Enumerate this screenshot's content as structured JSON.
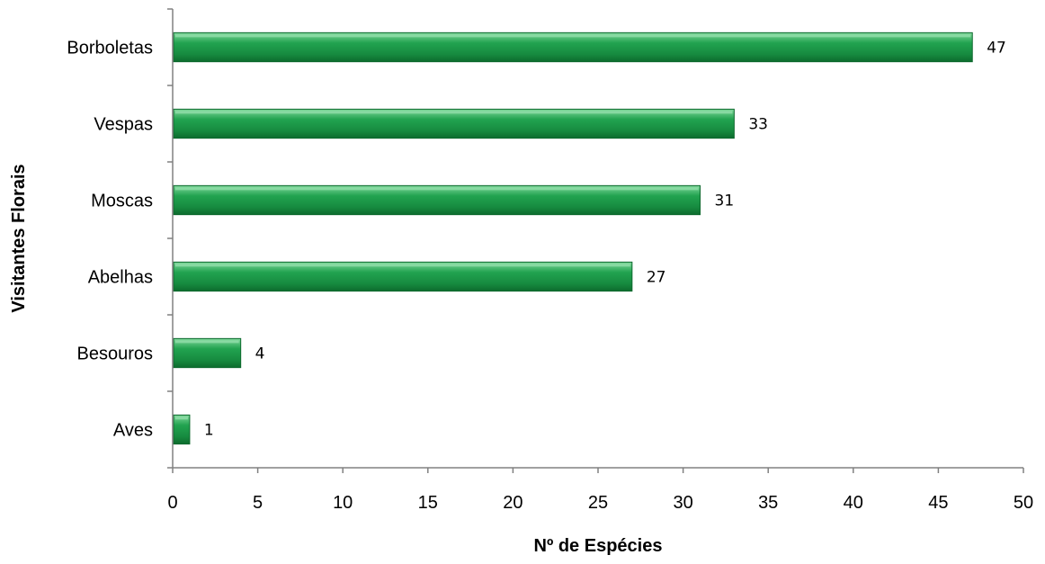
{
  "chart_data": {
    "type": "bar",
    "orientation": "horizontal",
    "categories": [
      "Aves",
      "Besouros",
      "Abelhas",
      "Moscas",
      "Vespas",
      "Borboletas"
    ],
    "values": [
      1,
      4,
      27,
      31,
      33,
      47
    ],
    "xlabel": "Nº de Espécies",
    "ylabel": "Visitantes Florais",
    "xlim": [
      0,
      50
    ],
    "xticks": [
      0,
      5,
      10,
      15,
      20,
      25,
      30,
      35,
      40,
      45,
      50
    ],
    "grid": false,
    "legend": "none",
    "bar_color": "#1f9a4a"
  }
}
